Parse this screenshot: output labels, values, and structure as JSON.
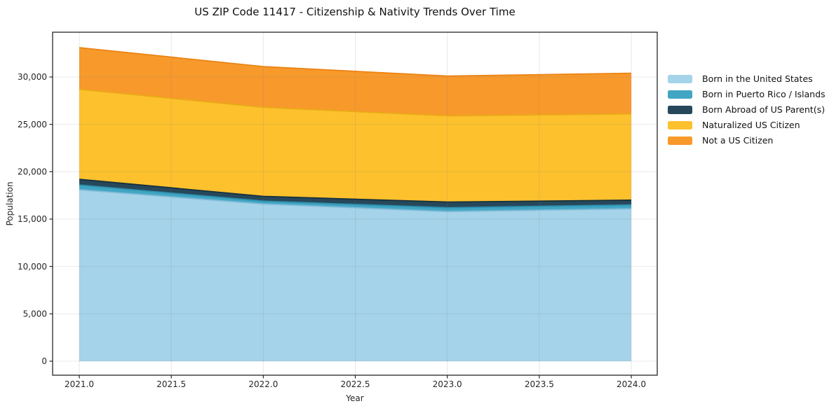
{
  "chart_data": {
    "type": "area",
    "stacked": true,
    "title": "US ZIP Code 11417 - Citizenship & Nativity Trends Over Time",
    "xlabel": "Year",
    "ylabel": "Population",
    "x": [
      2021,
      2022,
      2023,
      2024
    ],
    "series": [
      {
        "name": "Born in the United States",
        "values": [
          18100,
          16600,
          15800,
          16100
        ],
        "color": "#A5D3E9",
        "edge_color": "#7EBAD6"
      },
      {
        "name": "Born in Puerto Rico / Islands",
        "values": [
          500,
          300,
          400,
          400
        ],
        "color": "#41A6C4",
        "edge_color": "#2E8FAD"
      },
      {
        "name": "Born Abroad of US Parent(s)",
        "values": [
          600,
          500,
          600,
          500
        ],
        "color": "#27485A",
        "edge_color": "#16323F"
      },
      {
        "name": "Naturalized US Citizen",
        "values": [
          9500,
          9400,
          9100,
          9100
        ],
        "color": "#FDC12E",
        "edge_color": "#EAAA18"
      },
      {
        "name": "Not a US Citizen",
        "values": [
          4400,
          4300,
          4200,
          4300
        ],
        "color": "#F8992B",
        "edge_color": "#EA8414"
      }
    ],
    "stacked_totals": [
      33100,
      31100,
      30100,
      30400
    ],
    "xlim": [
      2020.855,
      2024.141
    ],
    "ylim": [
      -1480,
      34730
    ],
    "xticks": [
      "2021.0",
      "2021.5",
      "2022.0",
      "2022.5",
      "2023.0",
      "2023.5",
      "2024.0"
    ],
    "xtick_values": [
      2021.0,
      2021.5,
      2022.0,
      2022.5,
      2023.0,
      2023.5,
      2024.0
    ],
    "yticks": [
      "0",
      "5,000",
      "10,000",
      "15,000",
      "20,000",
      "25,000",
      "30,000"
    ],
    "ytick_values": [
      0,
      5000,
      10000,
      15000,
      20000,
      25000,
      30000
    ],
    "grid": true,
    "legend_position": "right",
    "colors": {
      "spine": "#262626",
      "tick_label": "#262626",
      "grid": "rgba(130,130,130,0.18)",
      "background": "#ffffff"
    }
  }
}
